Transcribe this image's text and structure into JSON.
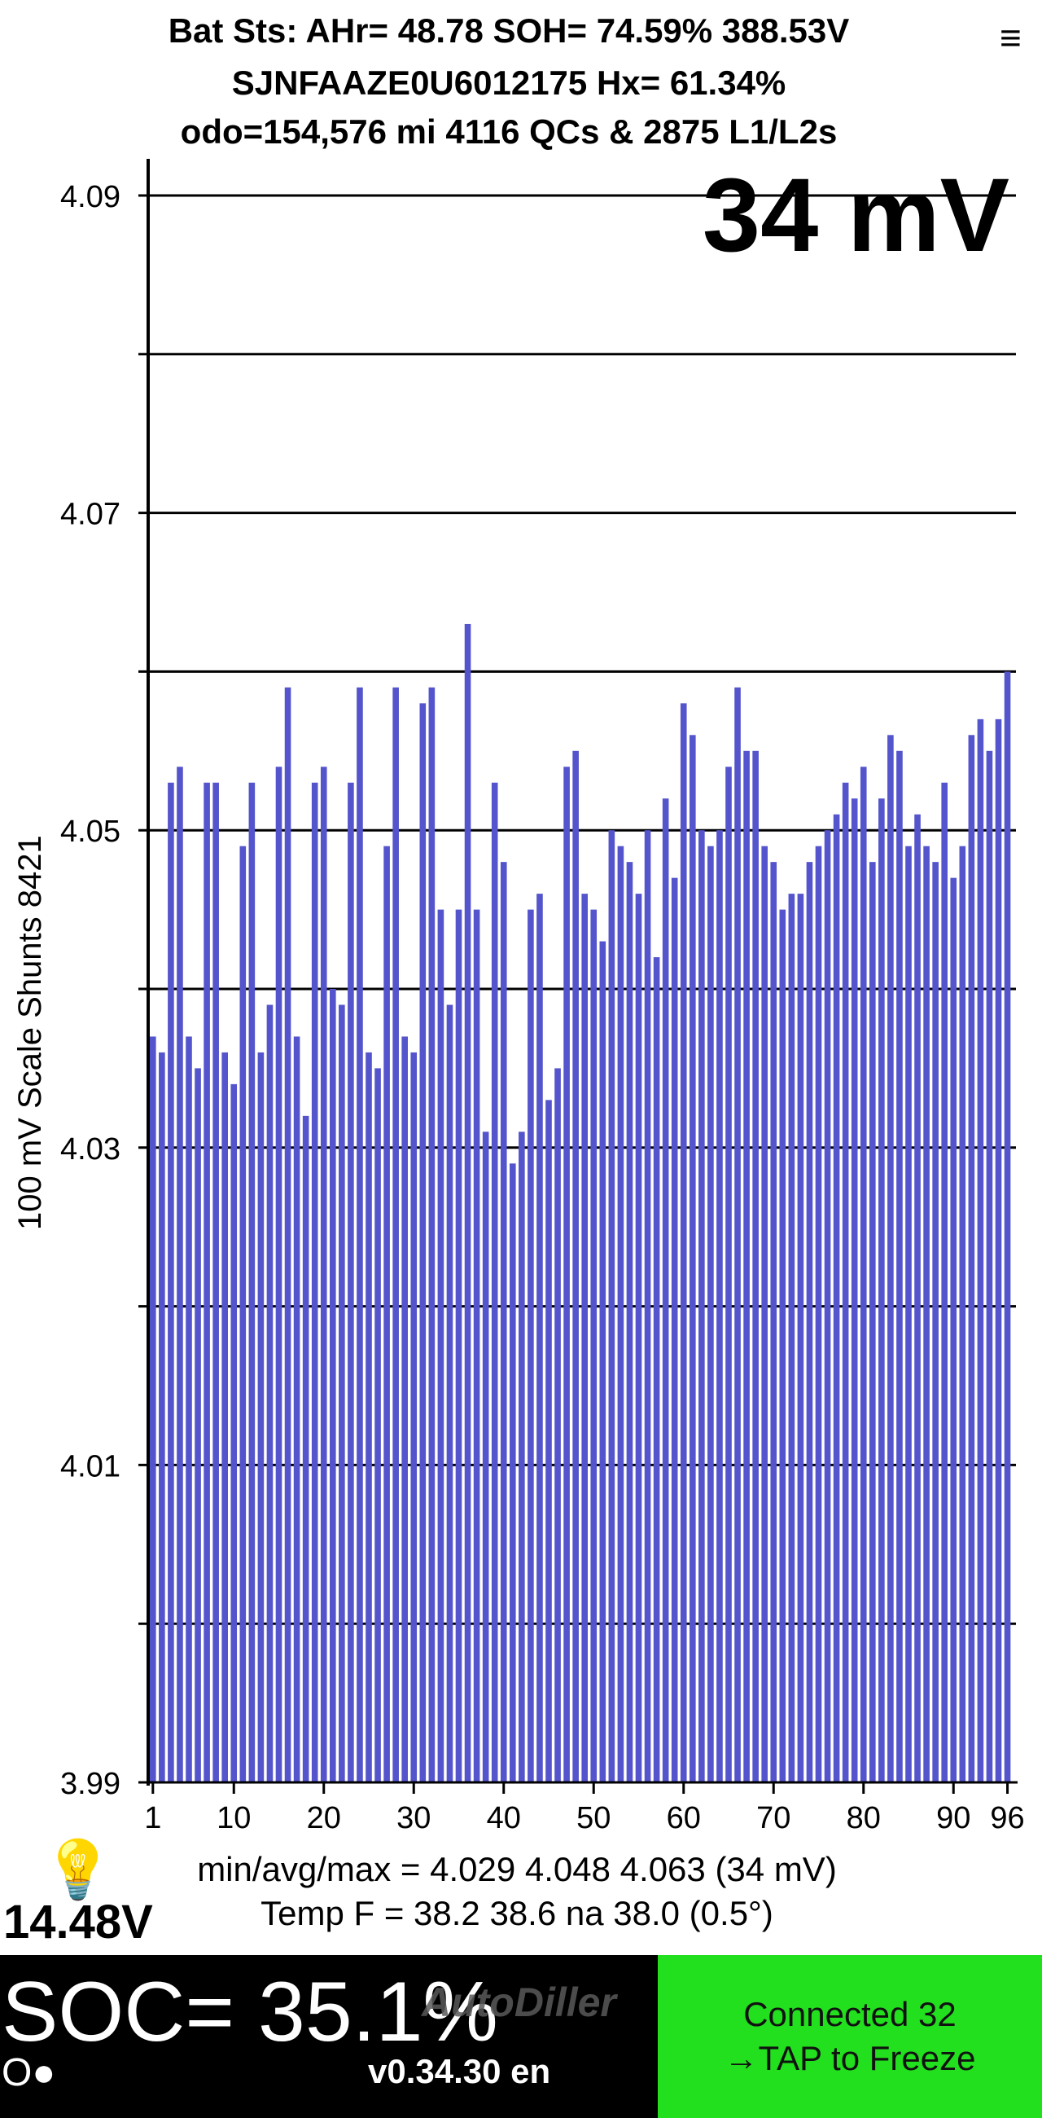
{
  "header": {
    "line1": "Bat Sts: AHr= 48.78 SOH= 74.59% 388.53V",
    "line2": "SJNFAAZE0U6012175   Hx= 61.34%",
    "line3": "odo=154,576 mi  4116 QCs & 2875 L1/L2s",
    "menu_icon": "≡"
  },
  "big_delta": "34 mV",
  "stats": {
    "minavgmax": "min/avg/max = 4.029 4.048 4.063  (34 mV)",
    "temp": "Temp F = 38.2  38.6  na  38.0  (0.5°)"
  },
  "aux_voltage": "14.48V",
  "bulb_icon": "lightbulb-icon",
  "footer": {
    "soc": "SOC= 35.1%",
    "watermark": "AutoDiller",
    "status_dots": "O●",
    "version": "v0.34.30 en",
    "button_line1": "Connected 32",
    "button_line2": "→TAP to Freeze",
    "button_color": "#22e01e"
  },
  "chart_data": {
    "type": "bar",
    "ylabel": "100 mV Scale   Shunts 8421",
    "ylim": [
      3.99,
      4.09
    ],
    "ytick_labels": [
      "4.09",
      "4.07",
      "4.05",
      "4.03",
      "4.01",
      "3.99"
    ],
    "gridlines": [
      3.99,
      4.0,
      4.01,
      4.02,
      4.03,
      4.04,
      4.05,
      4.06,
      4.07,
      4.08,
      4.09
    ],
    "xtick_labels": [
      "1",
      "10",
      "20",
      "30",
      "40",
      "50",
      "60",
      "70",
      "80",
      "90",
      "96"
    ],
    "bar_color": "#5454cc",
    "series": [
      {
        "values": [
          4.037,
          4.036,
          4.053,
          4.054,
          4.037,
          4.035,
          4.053,
          4.053,
          4.036,
          4.034,
          4.049,
          4.053,
          4.036,
          4.039,
          4.054,
          4.059,
          4.037,
          4.032,
          4.053,
          4.054,
          4.04,
          4.039,
          4.053,
          4.059,
          4.036,
          4.035,
          4.049,
          4.059,
          4.037,
          4.036,
          4.058,
          4.059,
          4.045,
          4.039,
          4.045,
          4.063,
          4.045,
          4.031,
          4.053,
          4.048,
          4.029,
          4.031,
          4.045,
          4.046,
          4.033,
          4.035,
          4.054,
          4.055,
          4.046,
          4.045,
          4.043,
          4.05,
          4.049,
          4.048,
          4.046,
          4.05,
          4.042,
          4.052,
          4.047,
          4.058,
          4.056,
          4.05,
          4.049,
          4.05,
          4.054,
          4.059,
          4.055,
          4.055,
          4.049,
          4.048,
          4.045,
          4.046,
          4.046,
          4.048,
          4.049,
          4.05,
          4.051,
          4.053,
          4.052,
          4.054,
          4.048,
          4.052,
          4.056,
          4.055,
          4.049,
          4.051,
          4.049,
          4.048,
          4.053,
          4.047,
          4.049,
          4.056,
          4.057,
          4.055,
          4.057,
          4.06
        ]
      }
    ]
  }
}
